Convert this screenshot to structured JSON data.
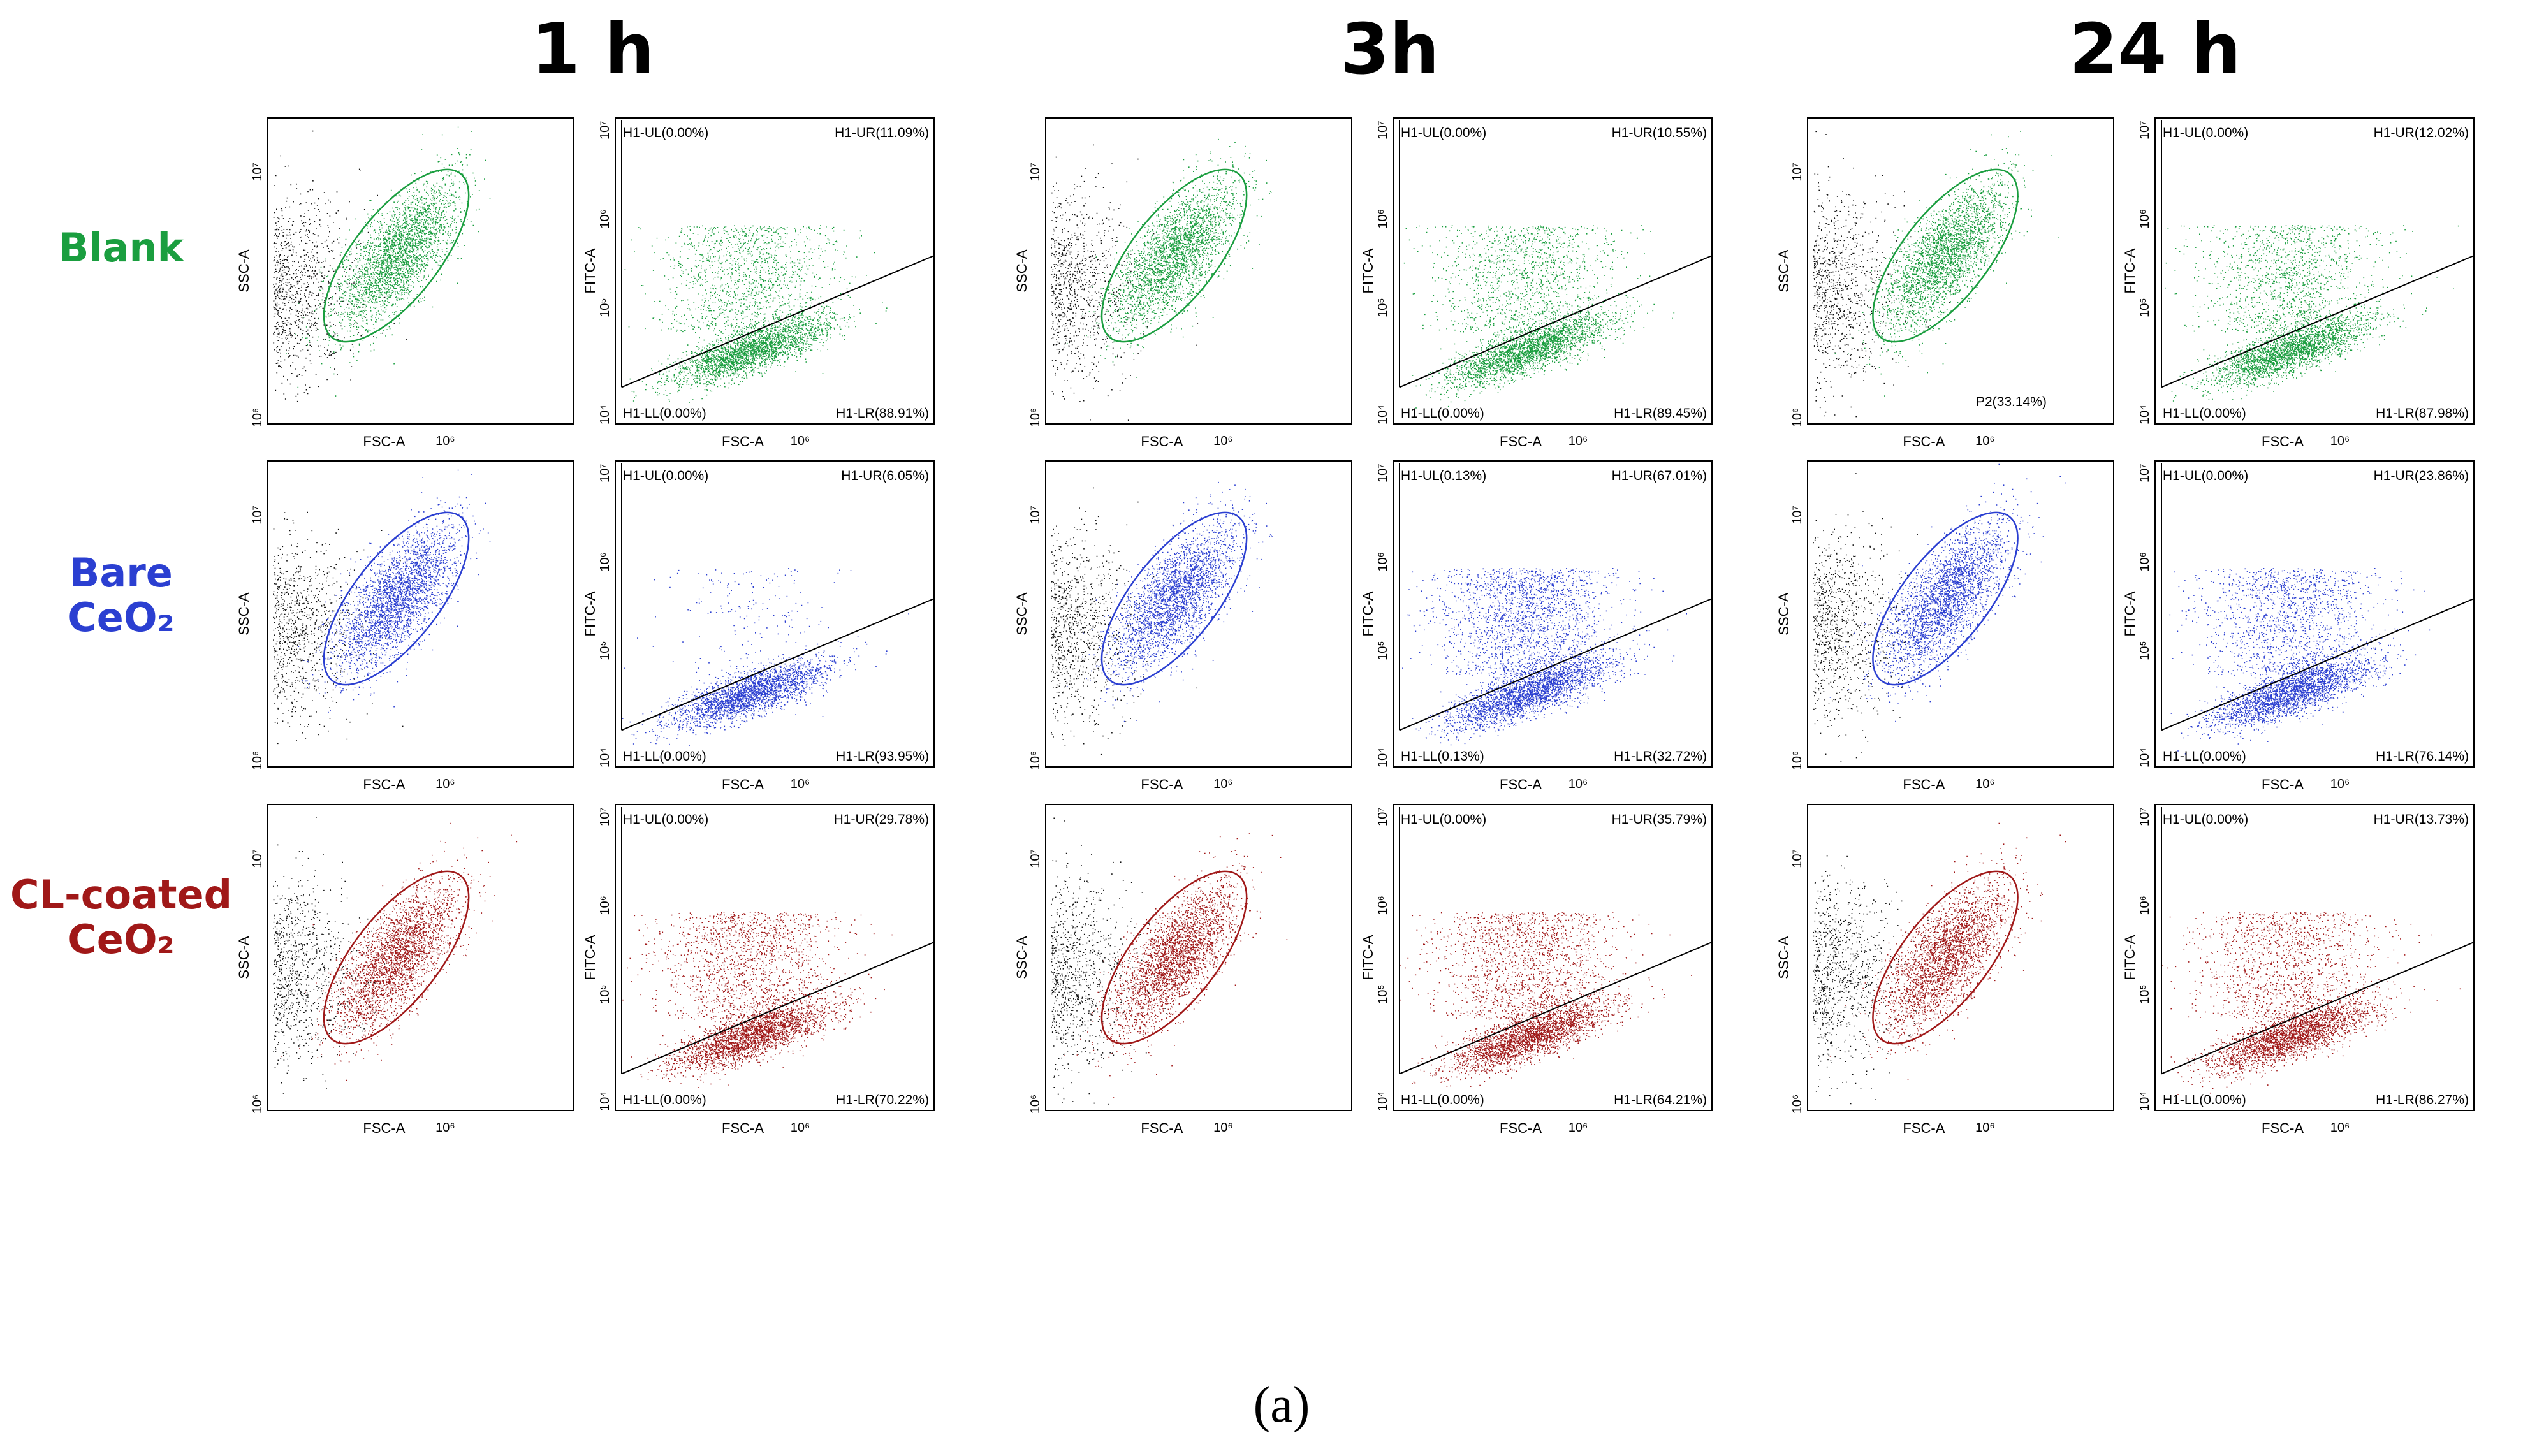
{
  "timepoints": [
    "1 h",
    "3h",
    "24 h"
  ],
  "rows": [
    {
      "label_lines": [
        "Blank"
      ],
      "color": "#1a9e3f"
    },
    {
      "label_lines": [
        "Bare",
        "CeO₂"
      ],
      "color": "#2b3fd1"
    },
    {
      "label_lines": [
        "CL-coated",
        "CeO₂"
      ],
      "color": "#a01818"
    }
  ],
  "axis_labels": {
    "ssc": "SSC-A",
    "fsc": "FSC-A",
    "fitc": "FITC-A"
  },
  "tick_labels": {
    "scatter_y_top": "10⁷",
    "scatter_y_bottom": "10⁶",
    "scatter_x": "10⁶",
    "fitc_y": [
      "10⁷",
      "10⁶",
      "10⁵",
      "10⁴"
    ],
    "fitc_x": "10⁶"
  },
  "chart_data": [
    {
      "type": "scatter",
      "timepoint": "1 h",
      "sample": "Blank",
      "quadrants": {
        "UL": "H1-UL(0.00%)",
        "UR": "H1-UR(11.09%)",
        "LL": "H1-LL(0.00%)",
        "LR": "H1-LR(88.91%)"
      }
    },
    {
      "type": "scatter",
      "timepoint": "3h",
      "sample": "Blank",
      "quadrants": {
        "UL": "H1-UL(0.00%)",
        "UR": "H1-UR(10.55%)",
        "LL": "H1-LL(0.00%)",
        "LR": "H1-LR(89.45%)"
      }
    },
    {
      "type": "scatter",
      "timepoint": "24 h",
      "sample": "Blank",
      "gate_label": "P2(33.14%)",
      "quadrants": {
        "UL": "H1-UL(0.00%)",
        "UR": "H1-UR(12.02%)",
        "LL": "H1-LL(0.00%)",
        "LR": "H1-LR(87.98%)"
      }
    },
    {
      "type": "scatter",
      "timepoint": "1 h",
      "sample": "Bare CeO2",
      "quadrants": {
        "UL": "H1-UL(0.00%)",
        "UR": "H1-UR(6.05%)",
        "LL": "H1-LL(0.00%)",
        "LR": "H1-LR(93.95%)"
      }
    },
    {
      "type": "scatter",
      "timepoint": "3h",
      "sample": "Bare CeO2",
      "quadrants": {
        "UL": "H1-UL(0.13%)",
        "UR": "H1-UR(67.01%)",
        "LL": "H1-LL(0.13%)",
        "LR": "H1-LR(32.72%)"
      }
    },
    {
      "type": "scatter",
      "timepoint": "24 h",
      "sample": "Bare CeO2",
      "quadrants": {
        "UL": "H1-UL(0.00%)",
        "UR": "H1-UR(23.86%)",
        "LL": "H1-LL(0.00%)",
        "LR": "H1-LR(76.14%)"
      }
    },
    {
      "type": "scatter",
      "timepoint": "1 h",
      "sample": "CL-coated CeO2",
      "quadrants": {
        "UL": "H1-UL(0.00%)",
        "UR": "H1-UR(29.78%)",
        "LL": "H1-LL(0.00%)",
        "LR": "H1-LR(70.22%)"
      }
    },
    {
      "type": "scatter",
      "timepoint": "3h",
      "sample": "CL-coated CeO2",
      "quadrants": {
        "UL": "H1-UL(0.00%)",
        "UR": "H1-UR(35.79%)",
        "LL": "H1-LL(0.00%)",
        "LR": "H1-LR(64.21%)"
      }
    },
    {
      "type": "scatter",
      "timepoint": "24 h",
      "sample": "CL-coated CeO2",
      "quadrants": {
        "UL": "H1-UL(0.00%)",
        "UR": "H1-UR(13.73%)",
        "LL": "H1-LL(0.00%)",
        "LR": "H1-LR(86.27%)"
      }
    }
  ],
  "caption": "(a)"
}
